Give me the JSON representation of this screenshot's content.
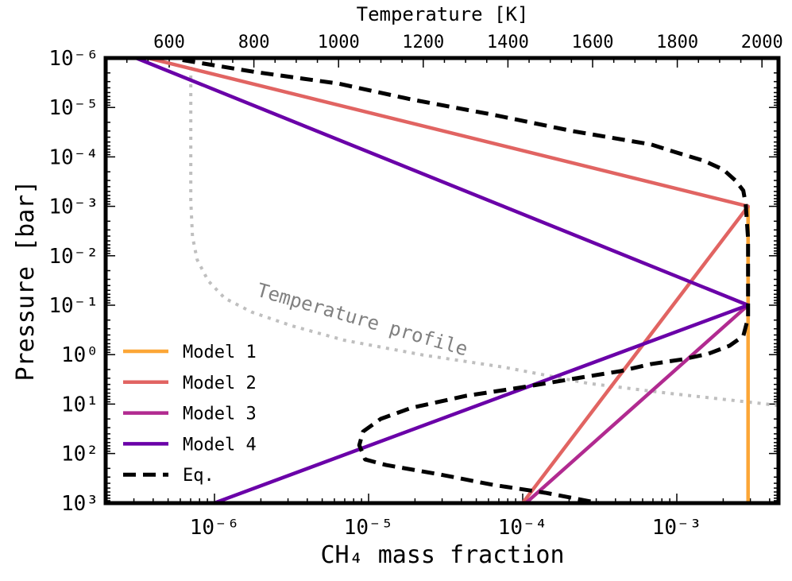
{
  "chart_data": {
    "type": "line",
    "xlabel": "CH₄ mass fraction",
    "ylabel": "Pressure [bar]",
    "x2label": "Temperature [K]",
    "xscale": "log",
    "yscale": "log",
    "xlim": [
      1.97e-07,
      0.0046
    ],
    "ylim": [
      1e-06,
      1000
    ],
    "y_inverted": true,
    "x2lim": [
      450,
      2039
    ],
    "grid": false,
    "legend_position": "lower-left",
    "x_ticks": [
      1e-06,
      1e-05,
      0.0001,
      0.001
    ],
    "x_ticklabels": [
      "10⁻⁶",
      "10⁻⁵",
      "10⁻⁴",
      "10⁻³"
    ],
    "y_ticks": [
      1e-06,
      1e-05,
      0.0001,
      0.001,
      0.01,
      0.1,
      1,
      10,
      100,
      1000
    ],
    "y_ticklabels": [
      "10⁻⁶",
      "10⁻⁵",
      "10⁻⁴",
      "10⁻³",
      "10⁻²",
      "10⁻¹",
      "10⁰",
      "10¹",
      "10²",
      "10³"
    ],
    "x2_ticks": [
      600,
      800,
      1000,
      1200,
      1400,
      1600,
      1800,
      2000
    ],
    "x2_ticklabels": [
      "600",
      "800",
      "1000",
      "1200",
      "1400",
      "1600",
      "1800",
      "2000"
    ],
    "series": [
      {
        "name": "Model 1",
        "color": "#fca636",
        "style": "solid",
        "x": [
          0.0029,
          0.0029
        ],
        "y": [
          0.001,
          1000
        ]
      },
      {
        "name": "Model 2",
        "color": "#e16462",
        "style": "solid",
        "x": [
          3.7e-07,
          0.0029,
          0.0001
        ],
        "y": [
          1e-06,
          0.001,
          1000
        ]
      },
      {
        "name": "Model 3",
        "color": "#b12a90",
        "style": "solid",
        "x": [
          0.0029,
          0.000105
        ],
        "y": [
          0.1,
          1000
        ]
      },
      {
        "name": "Model 4",
        "color": "#6a00a8",
        "style": "solid",
        "x": [
          3.1e-07,
          0.0029,
          1e-06
        ],
        "y": [
          1e-06,
          0.1,
          1000
        ]
      },
      {
        "name": "Eq.",
        "color": "#000000",
        "style": "dashed",
        "x": [
          6.2e-07,
          1.8e-06,
          6.4e-06,
          1.9e-05,
          6.4e-05,
          0.00021,
          0.00068,
          0.001,
          0.0015,
          0.002,
          0.0024,
          0.0027,
          0.0028,
          0.0029,
          0.0029,
          0.0027,
          0.0022,
          0.0016,
          0.0011,
          0.00068,
          0.00043,
          0.00021,
          9.4e-05,
          4.3e-05,
          1.9e-05,
          1.2e-05,
          9.2e-06,
          8.7e-06,
          9.5e-06,
          1.3e-05,
          2.9e-05,
          6.4e-05,
          0.00014,
          0.00031
        ],
        "y": [
          1.1e-06,
          1.9e-06,
          3.3e-06,
          6.9e-06,
          1.4e-05,
          3e-05,
          5.6e-05,
          8.2e-05,
          0.00012,
          0.00018,
          0.0003,
          0.00048,
          0.00091,
          0.0045,
          0.18,
          0.42,
          0.66,
          0.96,
          1.24,
          1.55,
          2.16,
          3.1,
          4.7,
          6.8,
          11.9,
          19.9,
          36,
          68,
          132,
          171,
          265,
          430,
          622,
          1000
        ]
      }
    ],
    "temperature_profile": {
      "label": "Temperature profile",
      "color": "#bfbfbf",
      "style": "dotted",
      "T": [
        651,
        651,
        655,
        666,
        692,
        731,
        795,
        889,
        1013,
        1200,
        1388,
        1589,
        1776,
        2002,
        2039
      ],
      "P": [
        1e-06,
        0.00078,
        0.0041,
        0.012,
        0.032,
        0.072,
        0.138,
        0.26,
        0.51,
        1.02,
        1.78,
        3.8,
        6.0,
        9.8,
        10.7
      ]
    }
  }
}
